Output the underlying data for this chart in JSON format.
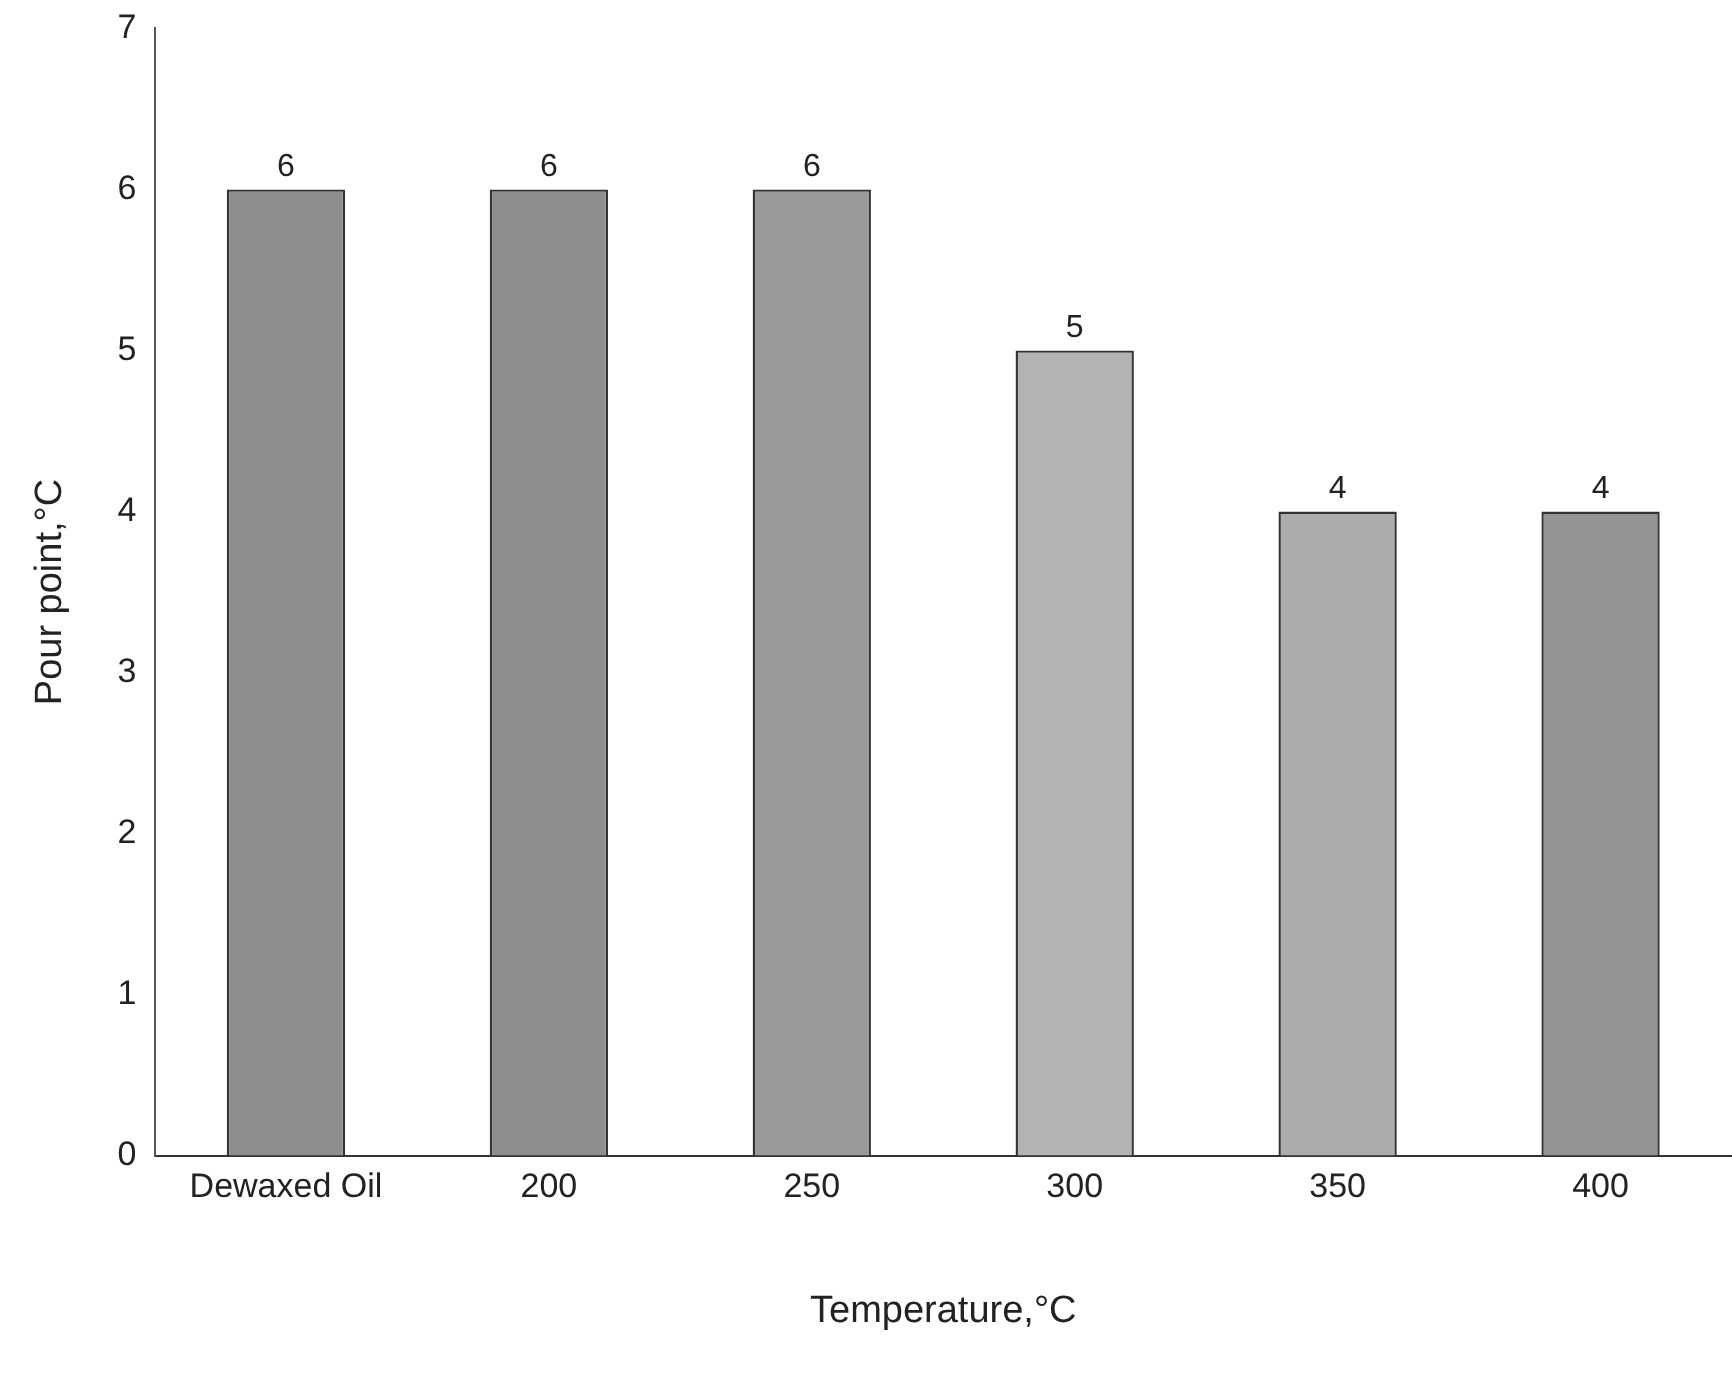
{
  "chart_data": {
    "type": "bar",
    "xlabel": "Temperature,°C",
    "ylabel": "Pour point,°C",
    "categories": [
      "Dewaxed Oil",
      "200",
      "250",
      "300",
      "350",
      "400"
    ],
    "values": [
      6,
      6,
      6,
      5,
      4,
      4
    ],
    "colors": [
      "#8e8e8e",
      "#8e8e8e",
      "#999999",
      "#b3b3b3",
      "#acacac",
      "#949494"
    ],
    "ylim": [
      0,
      7
    ],
    "yticks": [
      0,
      1,
      2,
      3,
      4,
      5,
      6,
      7
    ],
    "grid": false,
    "legend": false,
    "data_labels": true
  }
}
